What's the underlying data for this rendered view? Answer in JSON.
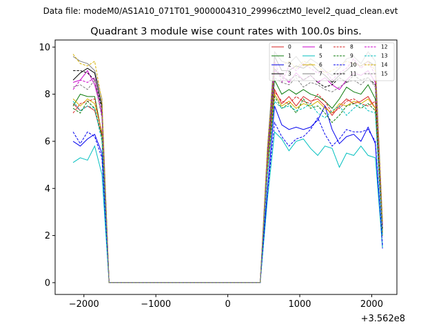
{
  "chart_data": {
    "type": "line",
    "suptitle": "Data file: modeM0/AS1A10_071T01_9000004310_29996cztM0_level2_quad_clean.evt",
    "title": "Quadrant 3 module wise count rates with 100.0s bins.",
    "xlabel": "",
    "ylabel": "",
    "x_offset_label": "+3.562e8",
    "xlim": [
      -2400,
      2350
    ],
    "ylim": [
      -0.5,
      10.3
    ],
    "xticks": [
      -2000,
      -1000,
      0,
      1000,
      2000
    ],
    "xtick_labels": [
      "−2000",
      "−1000",
      "0",
      "1000",
      "2000"
    ],
    "yticks": [
      0,
      2,
      4,
      6,
      8,
      10
    ],
    "ytick_labels": [
      "0",
      "2",
      "4",
      "6",
      "8",
      "10"
    ],
    "legend_position": "top-right",
    "x": [
      -2150,
      -2050,
      -1950,
      -1850,
      -1750,
      -1650,
      -1550,
      -1450,
      -1350,
      -1250,
      -1150,
      -1050,
      -950,
      -850,
      -750,
      -650,
      -550,
      -450,
      -350,
      -250,
      -150,
      -50,
      50,
      150,
      250,
      350,
      450,
      550,
      650,
      750,
      850,
      950,
      1050,
      1150,
      1250,
      1350,
      1450,
      1550,
      1650,
      1750,
      1850,
      1950,
      2050,
      2150
    ],
    "series": [
      {
        "name": "0",
        "color": "#d62020",
        "dash": "solid",
        "values": [
          7.6,
          7.3,
          7.5,
          7.3,
          6.2,
          0,
          0,
          0,
          0,
          0,
          0,
          0,
          0,
          0,
          0,
          0,
          0,
          0,
          0,
          0,
          0,
          0,
          0,
          0,
          0,
          0,
          0,
          4.8,
          8.2,
          7.6,
          7.9,
          7.5,
          7.9,
          7.7,
          7.8,
          7.5,
          7.1,
          7.5,
          7.8,
          7.6,
          7.7,
          7.9,
          7.4,
          2.0
        ]
      },
      {
        "name": "1",
        "color": "#0a7a0a",
        "dash": "solid",
        "values": [
          7.5,
          8.0,
          7.9,
          7.9,
          6.3,
          0,
          0,
          0,
          0,
          0,
          0,
          0,
          0,
          0,
          0,
          0,
          0,
          0,
          0,
          0,
          0,
          0,
          0,
          0,
          0,
          0,
          0,
          5.0,
          8.6,
          8.0,
          8.2,
          8.0,
          8.2,
          8.0,
          7.9,
          7.7,
          7.4,
          7.8,
          8.3,
          8.1,
          8.0,
          8.4,
          7.8,
          2.2
        ]
      },
      {
        "name": "2",
        "color": "#0000ee",
        "dash": "solid",
        "values": [
          6.0,
          5.8,
          6.1,
          6.3,
          5.5,
          0,
          0,
          0,
          0,
          0,
          0,
          0,
          0,
          0,
          0,
          0,
          0,
          0,
          0,
          0,
          0,
          0,
          0,
          0,
          0,
          0,
          0,
          3.9,
          7.5,
          6.7,
          6.5,
          6.6,
          6.5,
          6.6,
          6.9,
          7.5,
          6.5,
          5.9,
          6.2,
          6.3,
          6.0,
          6.6,
          5.9,
          1.45
        ]
      },
      {
        "name": "3",
        "color": "#000000",
        "dash": "solid",
        "values": [
          8.6,
          8.9,
          9.1,
          8.9,
          7.5,
          0,
          0,
          0,
          0,
          0,
          0,
          0,
          0,
          0,
          0,
          0,
          0,
          0,
          0,
          0,
          0,
          0,
          0,
          0,
          0,
          0,
          0,
          5.4,
          9.6,
          9.0,
          9.0,
          9.2,
          9.1,
          9.3,
          9.0,
          8.8,
          8.5,
          8.8,
          9.0,
          9.3,
          9.2,
          9.4,
          9.2,
          2.5
        ]
      },
      {
        "name": "4",
        "color": "#c800c8",
        "dash": "solid",
        "values": [
          8.5,
          8.6,
          9.0,
          8.4,
          7.2,
          0,
          0,
          0,
          0,
          0,
          0,
          0,
          0,
          0,
          0,
          0,
          0,
          0,
          0,
          0,
          0,
          0,
          0,
          0,
          0,
          0,
          0,
          5.2,
          9.0,
          8.8,
          8.5,
          8.9,
          8.6,
          8.8,
          8.5,
          8.7,
          8.4,
          8.2,
          8.6,
          8.9,
          8.8,
          9.0,
          8.5,
          2.4
        ]
      },
      {
        "name": "5",
        "color": "#00bfbf",
        "dash": "solid",
        "values": [
          5.1,
          5.3,
          5.2,
          5.8,
          4.6,
          0,
          0,
          0,
          0,
          0,
          0,
          0,
          0,
          0,
          0,
          0,
          0,
          0,
          0,
          0,
          0,
          0,
          0,
          0,
          0,
          0,
          0,
          3.5,
          6.4,
          6.1,
          5.6,
          6.0,
          6.1,
          5.7,
          5.4,
          5.8,
          5.7,
          4.9,
          5.5,
          5.4,
          5.8,
          5.4,
          5.3,
          1.5
        ]
      },
      {
        "name": "6",
        "color": "#d4b000",
        "dash": "solid",
        "values": [
          7.8,
          7.5,
          7.8,
          7.6,
          6.4,
          0,
          0,
          0,
          0,
          0,
          0,
          0,
          0,
          0,
          0,
          0,
          0,
          0,
          0,
          0,
          0,
          0,
          0,
          0,
          0,
          0,
          0,
          4.9,
          8.0,
          7.5,
          7.7,
          7.4,
          7.6,
          7.5,
          7.7,
          7.4,
          7.2,
          7.6,
          7.5,
          7.7,
          7.6,
          7.8,
          7.4,
          2.1
        ]
      },
      {
        "name": "7",
        "color": "#7f7f7f",
        "dash": "solid",
        "values": [
          9.6,
          9.4,
          9.3,
          9.0,
          7.8,
          0,
          0,
          0,
          0,
          0,
          0,
          0,
          0,
          0,
          0,
          0,
          0,
          0,
          0,
          0,
          0,
          0,
          0,
          0,
          0,
          0,
          0,
          5.7,
          9.8,
          9.4,
          9.3,
          9.6,
          9.2,
          9.5,
          9.3,
          9.0,
          8.8,
          9.1,
          9.5,
          9.6,
          9.3,
          9.8,
          9.4,
          2.6
        ]
      },
      {
        "name": "8",
        "color": "#d62020",
        "dash": "dashed",
        "values": [
          7.2,
          7.6,
          7.7,
          7.8,
          6.3,
          0,
          0,
          0,
          0,
          0,
          0,
          0,
          0,
          0,
          0,
          0,
          0,
          0,
          0,
          0,
          0,
          0,
          0,
          0,
          0,
          0,
          0,
          4.7,
          8.1,
          7.7,
          7.6,
          7.9,
          7.7,
          7.6,
          8.0,
          7.7,
          7.2,
          7.4,
          7.7,
          7.8,
          7.6,
          7.5,
          7.7,
          2.0
        ]
      },
      {
        "name": "9",
        "color": "#0a7a0a",
        "dash": "dashed",
        "values": [
          7.4,
          7.2,
          7.7,
          7.4,
          6.2,
          0,
          0,
          0,
          0,
          0,
          0,
          0,
          0,
          0,
          0,
          0,
          0,
          0,
          0,
          0,
          0,
          0,
          0,
          0,
          0,
          0,
          0,
          4.6,
          7.9,
          7.4,
          7.6,
          7.2,
          7.8,
          7.4,
          7.5,
          7.2,
          6.8,
          7.1,
          7.5,
          7.6,
          7.4,
          7.6,
          7.3,
          2.0
        ]
      },
      {
        "name": "10",
        "color": "#0000ee",
        "dash": "dashed",
        "values": [
          6.4,
          5.9,
          6.4,
          6.2,
          5.3,
          0,
          0,
          0,
          0,
          0,
          0,
          0,
          0,
          0,
          0,
          0,
          0,
          0,
          0,
          0,
          0,
          0,
          0,
          0,
          0,
          0,
          0,
          3.8,
          6.8,
          6.2,
          5.8,
          6.1,
          6.2,
          6.5,
          7.0,
          6.3,
          5.8,
          6.1,
          6.5,
          6.4,
          6.4,
          6.5,
          6.0,
          1.6
        ]
      },
      {
        "name": "11",
        "color": "#000000",
        "dash": "dashed",
        "values": [
          9.0,
          9.0,
          8.9,
          8.6,
          7.4,
          0,
          0,
          0,
          0,
          0,
          0,
          0,
          0,
          0,
          0,
          0,
          0,
          0,
          0,
          0,
          0,
          0,
          0,
          0,
          0,
          0,
          0,
          5.3,
          9.1,
          8.7,
          8.6,
          8.8,
          8.6,
          8.8,
          8.5,
          8.3,
          8.4,
          8.7,
          8.5,
          8.8,
          8.6,
          8.7,
          8.4,
          2.3
        ]
      },
      {
        "name": "12",
        "color": "#c800c8",
        "dash": "dashed",
        "values": [
          8.2,
          8.6,
          8.5,
          8.7,
          7.1,
          0,
          0,
          0,
          0,
          0,
          0,
          0,
          0,
          0,
          0,
          0,
          0,
          0,
          0,
          0,
          0,
          0,
          0,
          0,
          0,
          0,
          0,
          5.2,
          9.4,
          8.5,
          9.2,
          9.0,
          9.3,
          9.1,
          8.9,
          9.0,
          8.6,
          8.9,
          9.1,
          9.5,
          9.1,
          9.4,
          8.8,
          2.4
        ]
      },
      {
        "name": "13",
        "color": "#00bfbf",
        "dash": "dashed",
        "values": [
          7.7,
          7.3,
          7.5,
          7.4,
          6.0,
          0,
          0,
          0,
          0,
          0,
          0,
          0,
          0,
          0,
          0,
          0,
          0,
          0,
          0,
          0,
          0,
          0,
          0,
          0,
          0,
          0,
          0,
          4.6,
          7.7,
          7.4,
          7.5,
          7.3,
          7.4,
          7.6,
          7.2,
          7.0,
          7.3,
          7.5,
          7.1,
          7.4,
          7.6,
          7.3,
          7.2,
          2.0
        ]
      },
      {
        "name": "14",
        "color": "#d4b000",
        "dash": "dashed",
        "values": [
          9.7,
          9.3,
          9.2,
          9.4,
          7.7,
          0,
          0,
          0,
          0,
          0,
          0,
          0,
          0,
          0,
          0,
          0,
          0,
          0,
          0,
          0,
          0,
          0,
          0,
          0,
          0,
          0,
          0,
          5.6,
          9.3,
          9.2,
          9.4,
          9.1,
          9.4,
          9.3,
          9.2,
          8.9,
          9.0,
          9.2,
          9.4,
          9.3,
          9.2,
          9.4,
          9.0,
          2.6
        ]
      },
      {
        "name": "15",
        "color": "#7f7f7f",
        "dash": "dashed",
        "values": [
          8.3,
          8.4,
          8.2,
          8.6,
          7.0,
          0,
          0,
          0,
          0,
          0,
          0,
          0,
          0,
          0,
          0,
          0,
          0,
          0,
          0,
          0,
          0,
          0,
          0,
          0,
          0,
          0,
          0,
          5.1,
          8.7,
          8.5,
          8.4,
          8.7,
          8.3,
          8.5,
          8.4,
          8.2,
          8.1,
          8.3,
          8.5,
          8.6,
          8.4,
          8.7,
          8.3,
          2.3
        ]
      }
    ]
  }
}
